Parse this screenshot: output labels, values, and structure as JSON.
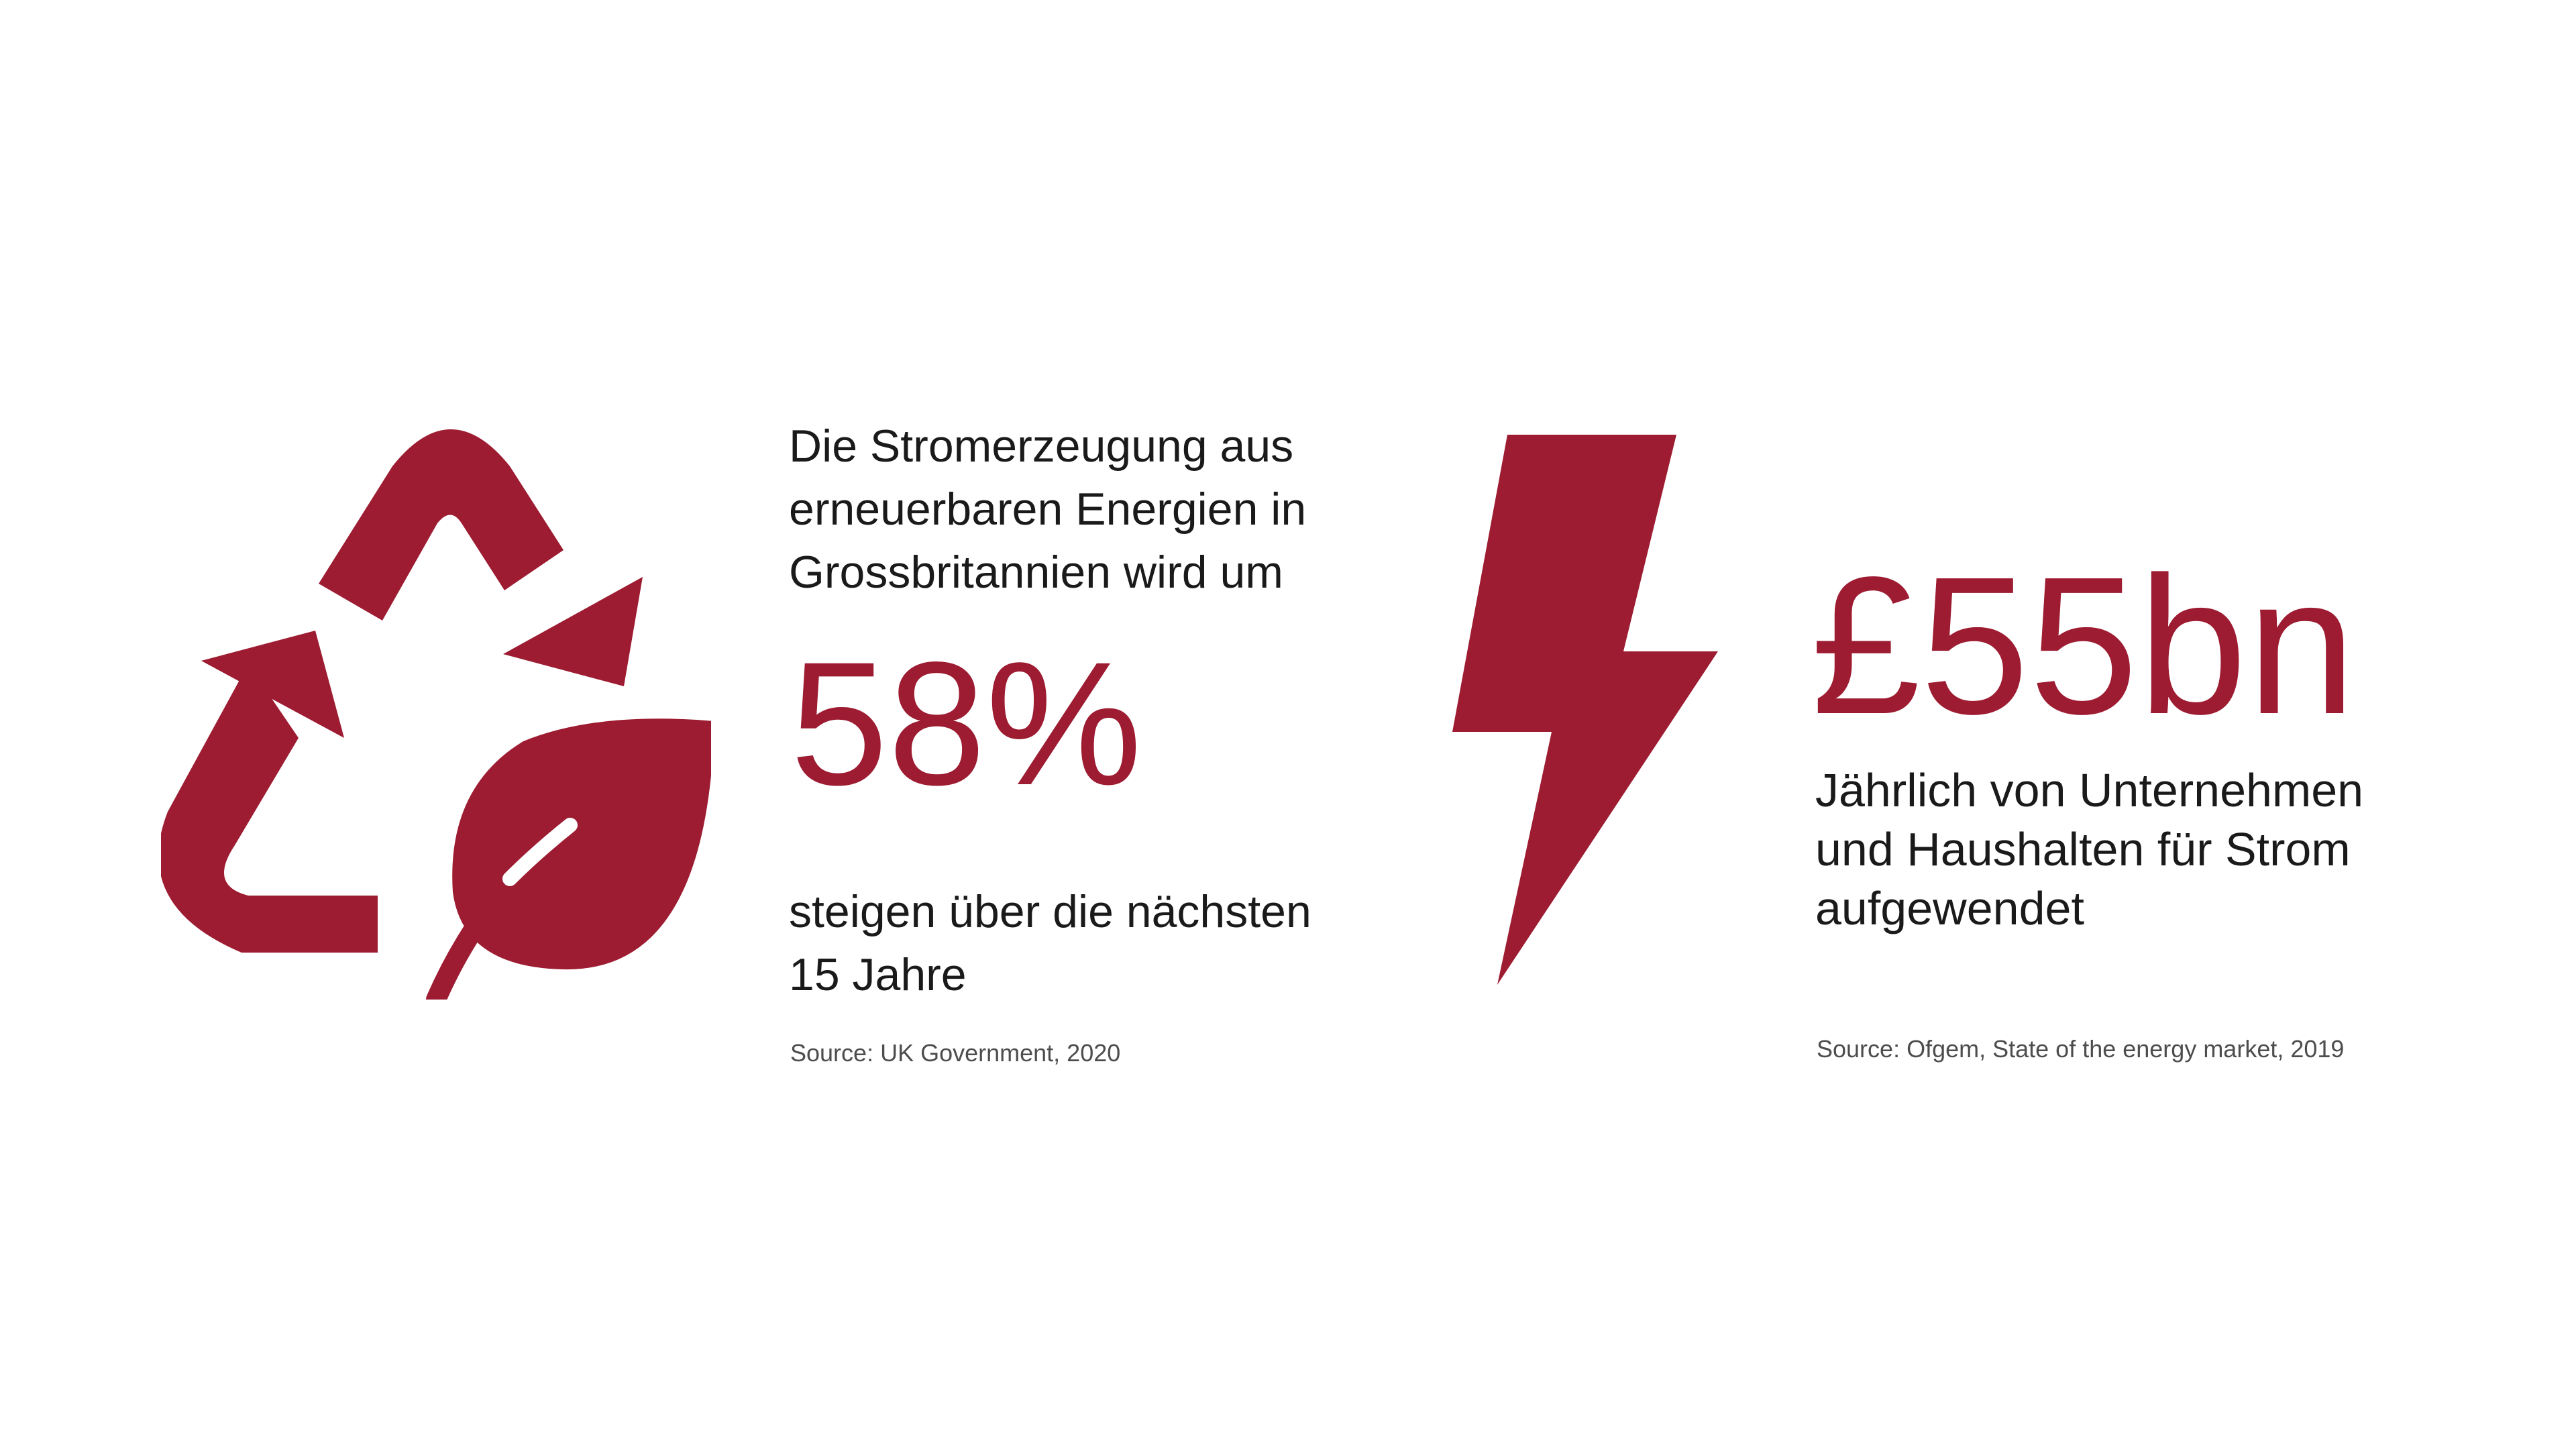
{
  "colors": {
    "accent": "#9d1c32",
    "text": "#1a1a1a",
    "source_text": "#4d4d4d",
    "background": "#ffffff"
  },
  "left_stat": {
    "icon": "recycle-leaf-icon",
    "intro_lines": [
      "Die Stromerzeugung aus",
      "erneuerbaren Energien in",
      "Grossbritannien wird um"
    ],
    "value": "58%",
    "outro_lines": [
      "steigen über die nächsten",
      "15 Jahre"
    ],
    "source": "Source: UK Government, 2020"
  },
  "right_stat": {
    "icon": "lightning-bolt-icon",
    "value": "£55bn",
    "description_lines": [
      "Jährlich von Unternehmen",
      "und Haushalten für Strom",
      "aufgewendet"
    ],
    "source": "Source: Ofgem, State of the energy market, 2019"
  }
}
